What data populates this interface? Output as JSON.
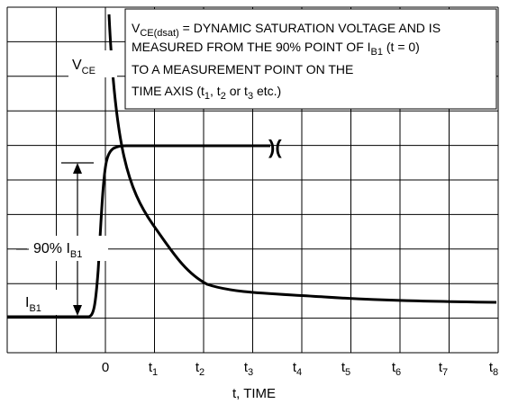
{
  "chart_data": {
    "type": "line",
    "title": "",
    "xlabel": "t, TIME",
    "ylabel": "",
    "x_tick_labels": [
      {
        "text": "0",
        "sub": ""
      },
      {
        "text": "t",
        "sub": "1"
      },
      {
        "text": "t",
        "sub": "2"
      },
      {
        "text": "t",
        "sub": "3"
      },
      {
        "text": "t",
        "sub": "4"
      },
      {
        "text": "t",
        "sub": "5"
      },
      {
        "text": "t",
        "sub": "6"
      },
      {
        "text": "t",
        "sub": "7"
      },
      {
        "text": "t",
        "sub": "8"
      }
    ],
    "grid": true,
    "annotation": {
      "line1_main": "V",
      "line1_sub": "CE(dsat)",
      "line1_rest": " = DYNAMIC SATURATION VOLTAGE AND IS",
      "line2_main": "MEASURED FROM THE 90% POINT OF I",
      "line2_sub": "B1",
      "line2_rest": " (t = 0)",
      "line3": "TO A MEASUREMENT POINT ON THE",
      "line4_main": "TIME AXIS (t",
      "line4_sub1": "1",
      "line4_mid1": ", t",
      "line4_sub2": "2",
      "line4_mid2": " or t",
      "line4_sub3": "3",
      "line4_rest": " etc.)"
    },
    "series": [
      {
        "label_main": "V",
        "label_sub": "CE"
      },
      {
        "label_main": "I",
        "label_sub": "B1"
      }
    ],
    "level_label": {
      "main": "90% I",
      "sub": "B1"
    },
    "break_symbol": ")("
  }
}
